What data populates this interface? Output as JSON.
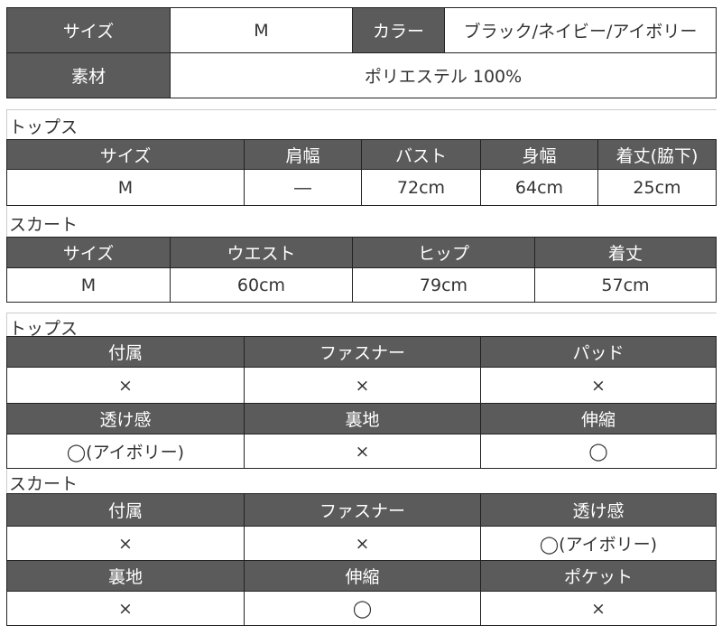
{
  "summary": {
    "size_label": "サイズ",
    "size_value": "M",
    "color_label": "カラー",
    "color_value": "ブラック/ネイビー/アイボリー",
    "material_label": "素材",
    "material_value": "ポリエステル 100%"
  },
  "tops_size": {
    "caption": "トップス",
    "headers": [
      "サイズ",
      "肩幅",
      "バスト",
      "身幅",
      "着丈(脇下)"
    ],
    "row": [
      "M",
      "―",
      "72cm",
      "64cm",
      "25cm"
    ]
  },
  "skirt_size": {
    "caption": "スカート",
    "headers": [
      "サイズ",
      "ウエスト",
      "ヒップ",
      "着丈"
    ],
    "row": [
      "M",
      "60cm",
      "79cm",
      "57cm"
    ]
  },
  "tops_features": {
    "caption": "トップス",
    "headers1": [
      "付属",
      "ファスナー",
      "パッド"
    ],
    "row1": [
      "×",
      "×",
      "×"
    ],
    "headers2": [
      "透け感",
      "裏地",
      "伸縮"
    ],
    "row2": [
      "◯(アイボリー)",
      "×",
      "◯"
    ]
  },
  "skirt_features": {
    "caption": "スカート",
    "headers1": [
      "付属",
      "ファスナー",
      "透け感"
    ],
    "row1": [
      "×",
      "×",
      "◯(アイボリー)"
    ],
    "headers2": [
      "裏地",
      "伸縮",
      "ポケット"
    ],
    "row2": [
      "×",
      "◯",
      "×"
    ]
  }
}
